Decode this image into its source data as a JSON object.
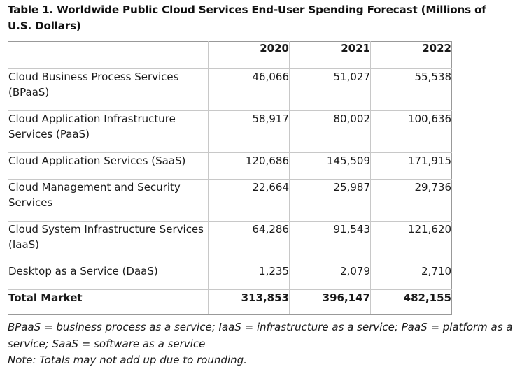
{
  "title": "Table 1. Worldwide Public Cloud Services End-User Spending Forecast (Millions of U.S. Dollars)",
  "table": {
    "columns": [
      "",
      "2020",
      "2021",
      "2022"
    ],
    "rows": [
      {
        "label": "Cloud Business Process Services (BPaaS)",
        "values": [
          "46,066",
          "51,027",
          "55,538"
        ]
      },
      {
        "label": "Cloud Application Infrastructure Services (PaaS)",
        "values": [
          "58,917",
          "80,002",
          "100,636"
        ]
      },
      {
        "label": "Cloud Application Services (SaaS)",
        "values": [
          "120,686",
          "145,509",
          "171,915"
        ]
      },
      {
        "label": "Cloud Management and Security Services",
        "values": [
          "22,664",
          "25,987",
          "29,736"
        ]
      },
      {
        "label": "Cloud System Infrastructure Services (IaaS)",
        "values": [
          "64,286",
          "91,543",
          "121,620"
        ]
      },
      {
        "label": "Desktop as a Service (DaaS)",
        "values": [
          "1,235",
          "2,079",
          "2,710"
        ]
      }
    ],
    "total": {
      "label": "Total Market",
      "values": [
        "313,853",
        "396,147",
        "482,155"
      ]
    }
  },
  "notes": {
    "abbreviations": "BPaaS = business process as a service; IaaS = infrastructure as a service; PaaS = platform as a service; SaaS = software as a service",
    "rounding": "Note: Totals may not add up due to rounding."
  }
}
